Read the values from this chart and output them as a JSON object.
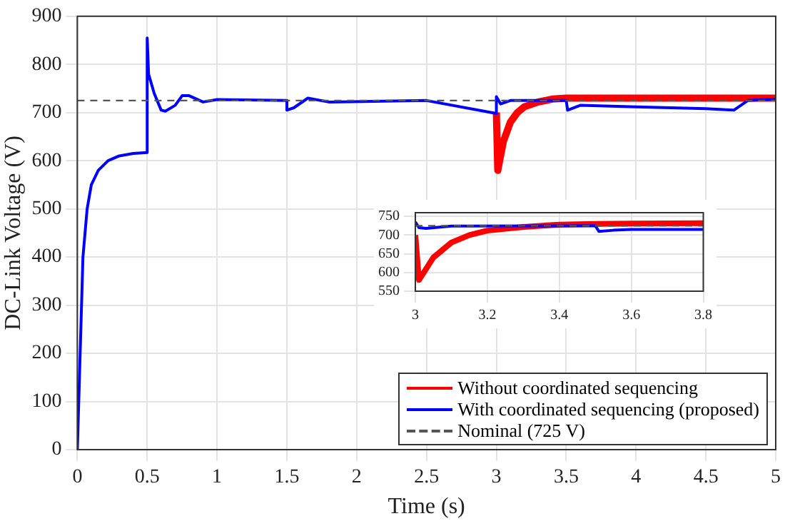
{
  "chart_data": [
    {
      "type": "line",
      "xlabel": "Time (s)",
      "ylabel": "DC-Link Voltage (V)",
      "xlim": [
        0,
        5
      ],
      "ylim": [
        0,
        900
      ],
      "xticks": [
        0,
        0.5,
        1,
        1.5,
        2,
        2.5,
        3,
        3.5,
        4,
        4.5,
        5
      ],
      "yticks": [
        0,
        100,
        200,
        300,
        400,
        500,
        600,
        700,
        800,
        900
      ],
      "grid": true,
      "legend": "bottom right",
      "marker": "none",
      "line_style": "solid",
      "series": [
        {
          "name": "Without coordinated sequencing",
          "color": "#ff0000",
          "x": [
            3.0,
            3.01,
            3.03,
            3.05,
            3.1,
            3.15,
            3.2,
            3.3,
            3.4,
            3.5,
            4.0,
            4.5,
            5.0
          ],
          "values": [
            700,
            580,
            610,
            640,
            680,
            700,
            712,
            722,
            728,
            730,
            730,
            730,
            730
          ]
        },
        {
          "name": "With coordinated sequencing (proposed)",
          "color": "#0000ff",
          "x": [
            0,
            0.02,
            0.04,
            0.07,
            0.1,
            0.15,
            0.22,
            0.3,
            0.4,
            0.5,
            0.5,
            0.51,
            0.55,
            0.6,
            0.63,
            0.7,
            0.75,
            0.8,
            0.9,
            1.0,
            1.5,
            1.5,
            1.55,
            1.65,
            1.8,
            2.5,
            3.0,
            3.0,
            3.03,
            3.1,
            3.5,
            3.51,
            3.6,
            4.0,
            4.5,
            4.7,
            4.8,
            5.0
          ],
          "values": [
            0,
            200,
            400,
            500,
            550,
            580,
            600,
            610,
            615,
            617,
            855,
            780,
            740,
            705,
            703,
            715,
            735,
            735,
            722,
            727,
            725,
            705,
            710,
            730,
            722,
            725,
            698,
            733,
            718,
            725,
            725,
            705,
            715,
            712,
            708,
            705,
            725,
            728
          ]
        }
      ],
      "ref_lines": [
        {
          "axis": "y",
          "value": 725,
          "label": "Nominal (725 V)",
          "color": "#555555",
          "line_style": "dashed"
        }
      ]
    },
    {
      "type": "line",
      "xlim": [
        3,
        3.8
      ],
      "ylim": [
        550,
        760
      ],
      "xticks": [
        3,
        3.2,
        3.4,
        3.6,
        3.8
      ],
      "yticks": [
        550,
        600,
        650,
        700,
        750
      ],
      "grid": true,
      "legend": false,
      "marker": "none",
      "line_style": "solid",
      "series": [
        {
          "color": "#ff0000",
          "x": [
            3.0,
            3.01,
            3.03,
            3.05,
            3.1,
            3.15,
            3.2,
            3.3,
            3.4,
            3.5,
            3.6,
            3.8
          ],
          "values": [
            700,
            580,
            610,
            640,
            680,
            700,
            712,
            722,
            728,
            730,
            731,
            732
          ]
        },
        {
          "color": "#0000ff",
          "x": [
            3.0,
            3.01,
            3.03,
            3.1,
            3.5,
            3.51,
            3.55,
            3.6,
            3.8
          ],
          "values": [
            735,
            720,
            718,
            724,
            725,
            710,
            713,
            715,
            715
          ]
        }
      ],
      "ref_lines": [
        {
          "axis": "y",
          "value": 725,
          "color": "#555555",
          "line_style": "dashed"
        }
      ]
    }
  ]
}
